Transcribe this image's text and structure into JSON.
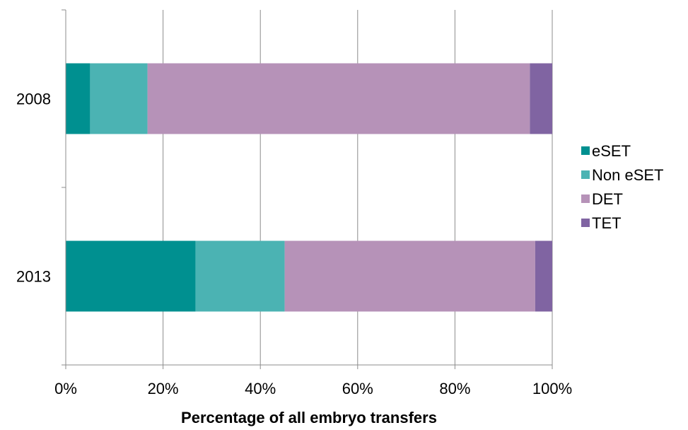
{
  "chart_data": {
    "type": "bar",
    "orientation": "horizontal",
    "stacked": true,
    "categories": [
      "2008",
      "2013"
    ],
    "series": [
      {
        "name": "eSET",
        "color": "#009090",
        "values": [
          5,
          26.7
        ]
      },
      {
        "name": "Non eSET",
        "color": "#4bb3b3",
        "values": [
          11.8,
          18.3
        ]
      },
      {
        "name": "DET",
        "color": "#b692b8",
        "values": [
          78.6,
          51.5
        ]
      },
      {
        "name": "TET",
        "color": "#8064a2",
        "values": [
          4.6,
          3.5
        ]
      }
    ],
    "xlabel": "Percentage of all embryo transfers",
    "xlim": [
      0,
      100
    ],
    "xticks": [
      "0%",
      "20%",
      "40%",
      "60%",
      "80%",
      "100%"
    ],
    "grid": true,
    "legend": "right"
  }
}
